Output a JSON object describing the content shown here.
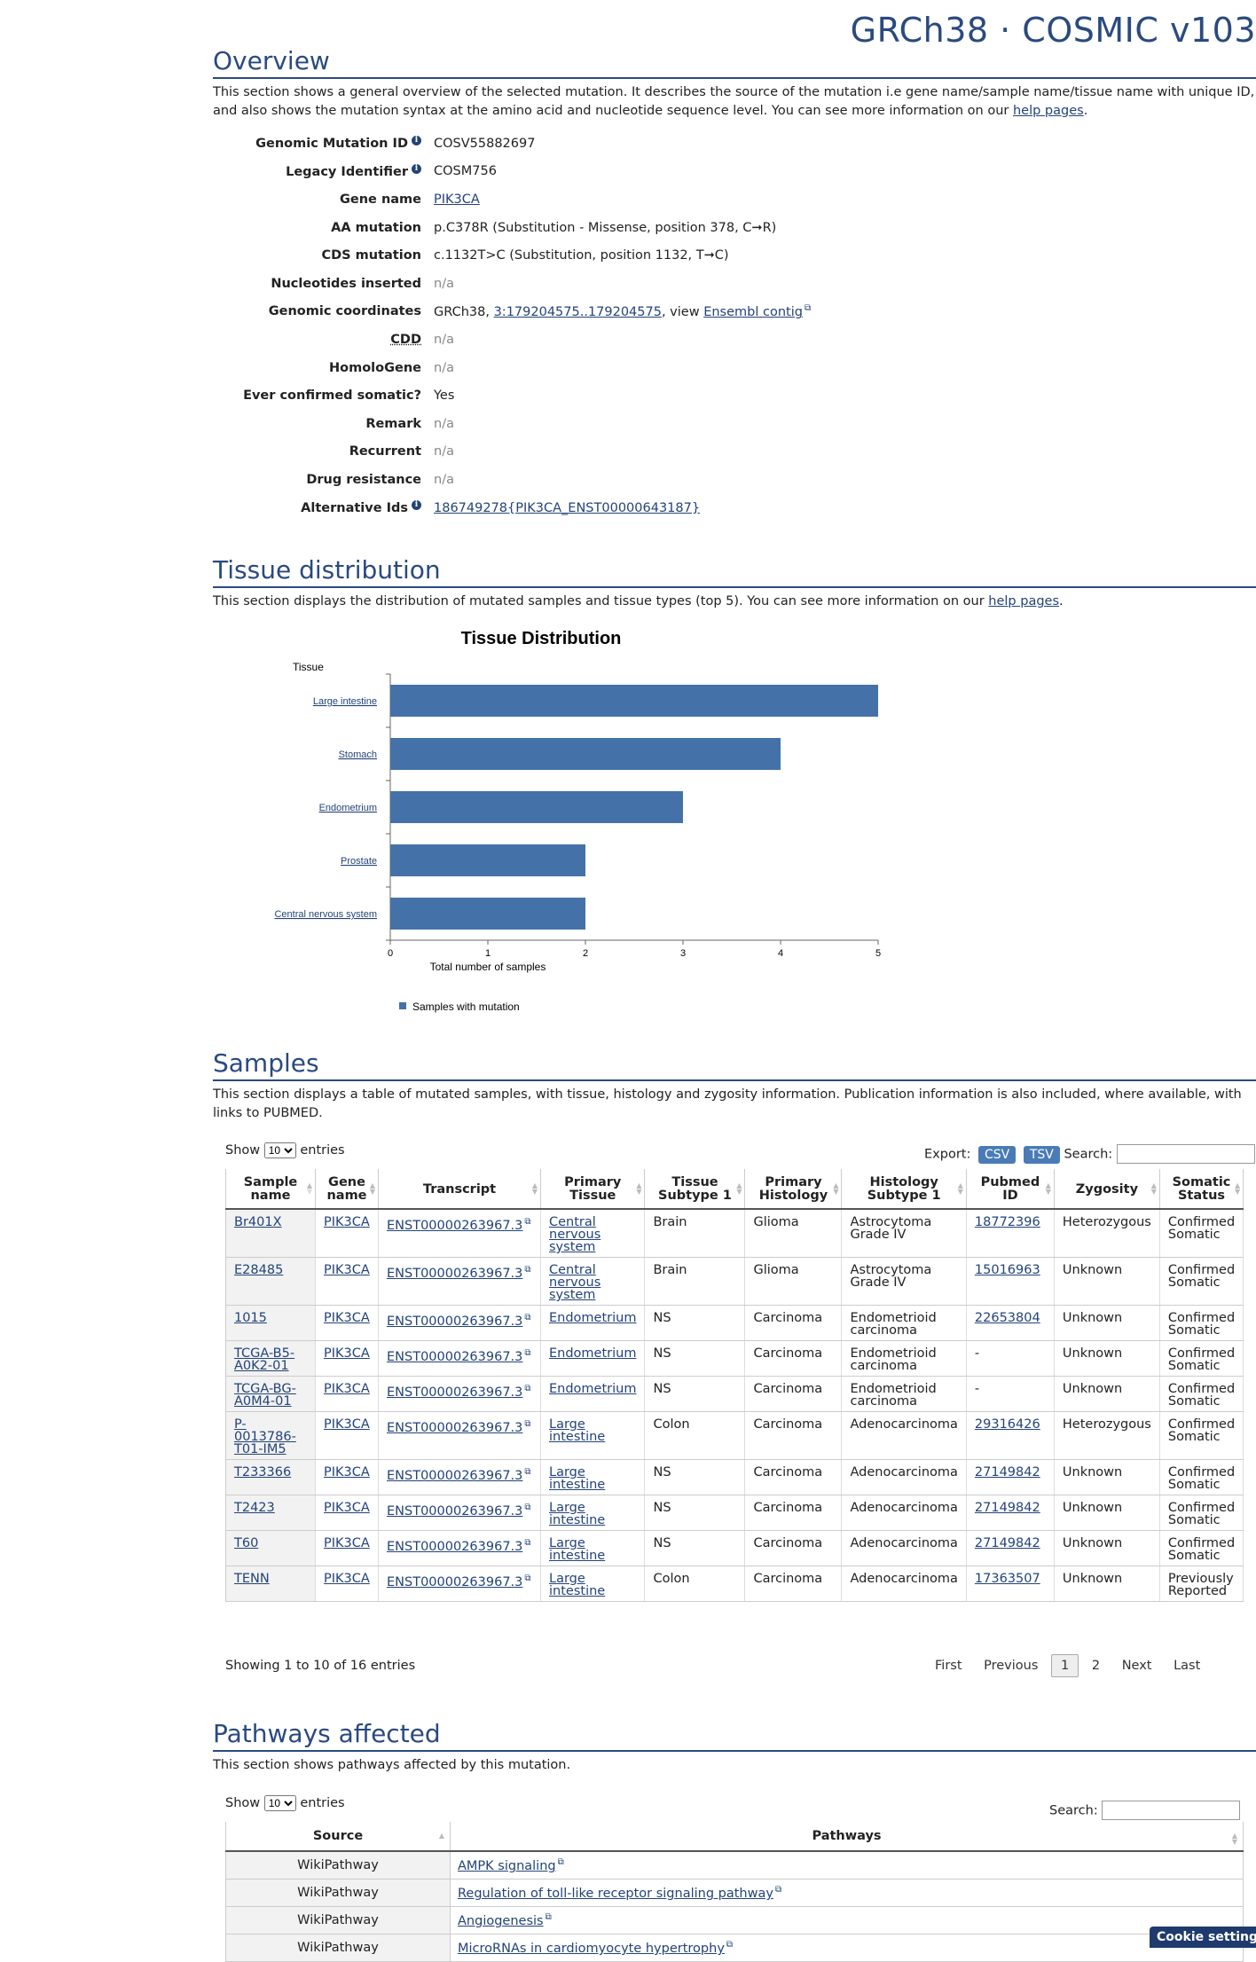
{
  "header": {
    "banner": "GRCh38 · COSMIC v103"
  },
  "overview": {
    "title": "Overview",
    "description": "This section shows a general overview of the selected mutation. It describes the source of the mutation i.e gene name/sample name/tissue name with unique ID, and also shows the mutation syntax at the amino acid and nucleotide sequence level. You can see more information on our",
    "help_link": "help pages",
    "rows": {
      "genomic_mutation_id": {
        "label": "Genomic Mutation ID",
        "value": "COSV55882697"
      },
      "legacy_identifier": {
        "label": "Legacy Identifier",
        "value": "COSM756"
      },
      "gene_name": {
        "label": "Gene name",
        "value": "PIK3CA"
      },
      "aa_mutation": {
        "label": "AA mutation",
        "value": "p.C378R (Substitution - Missense, position 378, C➞R)"
      },
      "cds_mutation": {
        "label": "CDS mutation",
        "value": "c.1132T>C (Substitution, position 1132, T➞C)"
      },
      "nucleotides_inserted": {
        "label": "Nucleotides inserted",
        "value": "n/a"
      },
      "genomic_coordinates": {
        "label": "Genomic coordinates",
        "prefix": "GRCh38,",
        "coord_link": "3:179204575..179204575",
        "view_text": ", view",
        "ensembl_link": "Ensembl contig"
      },
      "cdd": {
        "label": "CDD",
        "value": "n/a"
      },
      "homologene": {
        "label": "HomoloGene",
        "value": "n/a"
      },
      "ever_confirmed_somatic": {
        "label": "Ever confirmed somatic?",
        "value": "Yes"
      },
      "remark": {
        "label": "Remark",
        "value": "n/a"
      },
      "recurrent": {
        "label": "Recurrent",
        "value": "n/a"
      },
      "drug_resistance": {
        "label": "Drug resistance",
        "value": "n/a"
      },
      "alternative_ids": {
        "label": "Alternative Ids",
        "value": "186749278{PIK3CA_ENST00000643187}"
      }
    }
  },
  "tissue_distribution": {
    "title": "Tissue distribution",
    "description": "This section displays the distribution of mutated samples and tissue types (top 5). You can see more information on our",
    "help_link": "help pages"
  },
  "chart_data": {
    "type": "bar",
    "orientation": "horizontal",
    "title": "Tissue Distribution",
    "ylabel": "Tissue",
    "xlabel": "Total number of samples",
    "categories": [
      "Large intestine",
      "Stomach",
      "Endometrium",
      "Prostate",
      "Central nervous system"
    ],
    "series": [
      {
        "name": "Samples with mutation",
        "values": [
          5,
          4,
          3,
          2,
          2
        ]
      }
    ],
    "xlim": [
      0,
      5
    ],
    "xticks": [
      "0",
      "1",
      "2",
      "3",
      "4",
      "5"
    ],
    "bar_color": "#4472a8",
    "legend": "bottom-left",
    "grid": false
  },
  "samples": {
    "title": "Samples",
    "description": "This section displays a table of mutated samples, with tissue, histology and zygosity information. Publication information is also included, where available, with links to PUBMED.",
    "show_label": "Show",
    "entries_label": "entries",
    "page_size": "10",
    "export_label": "Export:",
    "csv_label": "CSV",
    "tsv_label": "TSV",
    "search_label": "Search:",
    "columns": [
      "Sample name",
      "Gene name",
      "Transcript",
      "Primary Tissue",
      "Tissue Subtype 1",
      "Primary Histology",
      "Histology Subtype 1",
      "Pubmed ID",
      "Zygosity",
      "Somatic Status"
    ],
    "rows": [
      [
        "Br401X",
        "PIK3CA",
        "ENST00000263967.3",
        "Central nervous system",
        "Brain",
        "Glioma",
        "Astrocytoma Grade IV",
        "18772396",
        "Heterozygous",
        "Confirmed Somatic"
      ],
      [
        "E28485",
        "PIK3CA",
        "ENST00000263967.3",
        "Central nervous system",
        "Brain",
        "Glioma",
        "Astrocytoma Grade IV",
        "15016963",
        "Unknown",
        "Confirmed Somatic"
      ],
      [
        "1015",
        "PIK3CA",
        "ENST00000263967.3",
        "Endometrium",
        "NS",
        "Carcinoma",
        "Endometrioid carcinoma",
        "22653804",
        "Unknown",
        "Confirmed Somatic"
      ],
      [
        "TCGA-B5-A0K2-01",
        "PIK3CA",
        "ENST00000263967.3",
        "Endometrium",
        "NS",
        "Carcinoma",
        "Endometrioid carcinoma",
        "-",
        "Unknown",
        "Confirmed Somatic"
      ],
      [
        "TCGA-BG-A0M4-01",
        "PIK3CA",
        "ENST00000263967.3",
        "Endometrium",
        "NS",
        "Carcinoma",
        "Endometrioid carcinoma",
        "-",
        "Unknown",
        "Confirmed Somatic"
      ],
      [
        "P-0013786-T01-IM5",
        "PIK3CA",
        "ENST00000263967.3",
        "Large intestine",
        "Colon",
        "Carcinoma",
        "Adenocarcinoma",
        "29316426",
        "Heterozygous",
        "Confirmed Somatic"
      ],
      [
        "T233366",
        "PIK3CA",
        "ENST00000263967.3",
        "Large intestine",
        "NS",
        "Carcinoma",
        "Adenocarcinoma",
        "27149842",
        "Unknown",
        "Confirmed Somatic"
      ],
      [
        "T2423",
        "PIK3CA",
        "ENST00000263967.3",
        "Large intestine",
        "NS",
        "Carcinoma",
        "Adenocarcinoma",
        "27149842",
        "Unknown",
        "Confirmed Somatic"
      ],
      [
        "T60",
        "PIK3CA",
        "ENST00000263967.3",
        "Large intestine",
        "NS",
        "Carcinoma",
        "Adenocarcinoma",
        "27149842",
        "Unknown",
        "Confirmed Somatic"
      ],
      [
        "TENN",
        "PIK3CA",
        "ENST00000263967.3",
        "Large intestine",
        "Colon",
        "Carcinoma",
        "Adenocarcinoma",
        "17363507",
        "Unknown",
        "Previously Reported"
      ]
    ],
    "info": "Showing 1 to 10 of 16 entries",
    "pager": {
      "first": "First",
      "previous": "Previous",
      "page1": "1",
      "page2": "2",
      "next": "Next",
      "last": "Last"
    }
  },
  "pathways": {
    "title": "Pathways affected",
    "description": "This section shows pathways affected by this mutation.",
    "show_label": "Show",
    "entries_label": "entries",
    "page_size": "10",
    "search_label": "Search:",
    "columns": [
      "Source",
      "Pathways"
    ],
    "rows": [
      [
        "WikiPathway",
        "AMPK signaling"
      ],
      [
        "WikiPathway",
        "Regulation of toll-like receptor signaling pathway"
      ],
      [
        "WikiPathway",
        "Angiogenesis"
      ],
      [
        "WikiPathway",
        "MicroRNAs in cardiomyocyte hypertrophy"
      ]
    ]
  },
  "cookie": {
    "label": "Cookie settings"
  }
}
